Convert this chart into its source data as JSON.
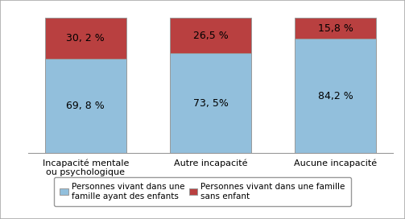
{
  "categories": [
    "Incapacité mentale\nou psychologique",
    "Autre incapacité",
    "Aucune incapacité"
  ],
  "values_blue": [
    69.8,
    73.5,
    84.2
  ],
  "values_red": [
    30.2,
    26.5,
    15.8
  ],
  "labels_blue": [
    "69, 8 %",
    "73, 5%",
    "84,2 %"
  ],
  "labels_red": [
    "30, 2 %",
    "26,5 %",
    "15,8 %"
  ],
  "color_blue": "#92BFDC",
  "color_red": "#B94040",
  "legend_blue": "Personnes vivant dans une\nfamille ayant des enfants",
  "legend_red": "Personnes vivant dans une famille\nsans enfant",
  "bar_width": 0.65,
  "ylim": [
    0,
    100
  ],
  "background_color": "#ffffff",
  "label_fontsize": 9.0,
  "tick_fontsize": 8.0
}
